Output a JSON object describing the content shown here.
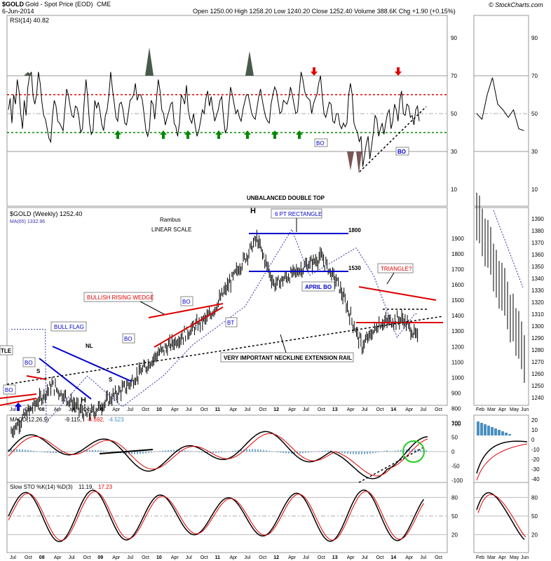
{
  "header": {
    "symbol": "$GOLD",
    "name": "Gold - Spot Price (EOD)",
    "exchange": "CME",
    "date": "6-Jun-2014",
    "ohlc": "Open 1250.00  High 1258.20  Low 1240.20  Close 1252.40  Volume 388.6K  Chg +1.90 (+0.15%)",
    "copyright": "© StockCharts.com"
  },
  "rsi": {
    "label": "RSI(14) 40.82",
    "ticks": [
      90,
      70,
      50,
      30,
      10
    ],
    "levels": {
      "upper": 60,
      "lower": 40
    },
    "values": [
      52,
      58,
      45,
      60,
      55,
      68,
      62,
      50,
      42,
      57,
      49,
      64,
      70,
      72,
      59,
      55,
      60,
      72,
      66,
      56,
      49,
      47,
      42,
      37,
      35,
      49,
      57,
      54,
      46,
      45,
      43,
      41,
      52,
      63,
      60,
      54,
      49,
      48,
      54,
      53,
      48,
      40,
      42,
      56,
      68,
      58,
      45,
      39,
      41,
      57,
      53,
      56,
      51,
      44,
      41,
      49,
      52,
      60,
      72,
      63,
      56,
      48,
      46,
      55,
      56,
      52,
      45,
      44,
      50,
      57,
      58,
      60,
      66,
      57,
      60,
      60,
      57,
      49,
      41,
      38,
      42,
      57,
      55,
      47,
      58,
      68,
      62,
      52,
      50,
      44,
      48,
      51,
      55,
      56,
      45,
      43,
      38,
      45,
      60,
      58,
      55,
      65,
      52,
      47,
      45,
      50,
      43,
      38,
      41,
      46,
      52,
      50,
      58,
      62,
      54,
      59,
      52,
      46,
      49,
      52,
      57,
      59,
      48,
      40,
      42,
      54,
      64,
      60,
      55,
      50,
      52,
      48,
      46,
      52,
      56,
      60,
      60,
      55,
      50,
      48,
      47,
      53,
      59,
      63,
      57,
      52,
      48,
      46,
      45,
      55,
      60,
      64,
      62,
      56,
      50,
      51,
      57,
      56,
      55,
      58,
      64,
      60,
      55,
      50,
      51,
      62,
      72,
      68,
      62,
      59,
      58,
      57,
      50,
      55,
      58,
      60,
      66,
      70,
      59,
      50,
      48,
      52,
      56,
      55,
      46,
      45,
      50,
      50,
      44,
      42,
      45,
      43,
      45,
      60,
      66,
      60,
      45,
      42,
      40,
      35,
      38,
      22,
      28,
      34,
      38,
      26,
      33,
      40,
      49,
      47,
      38,
      42,
      45,
      39,
      45,
      50,
      52,
      42,
      46,
      55,
      52,
      46,
      57,
      62,
      50,
      49,
      55,
      54,
      48,
      49,
      44,
      52,
      54,
      46
    ],
    "bo_label": "BO",
    "side_values": [
      50,
      47,
      60,
      69,
      55,
      52,
      48,
      52,
      42,
      41
    ]
  },
  "price": {
    "title": "$GOLD (Weekly) 1252.40",
    "ma_label": "MA(65) 1332.96",
    "scale_note_1": "Rambus",
    "scale_note_2": "LINEAR SCALE",
    "ticks": [
      1900,
      1800,
      1700,
      1600,
      1500,
      1400,
      1300,
      1200,
      1100,
      1000,
      900,
      800,
      700
    ],
    "side_ticks": [
      1390,
      1380,
      1370,
      1360,
      1350,
      1340,
      1330,
      1320,
      1310,
      1300,
      1290,
      1280,
      1270,
      1260,
      1250,
      1240
    ],
    "x_ticks": [
      "Jul",
      "Oct",
      "08",
      "Apr",
      "Jul",
      "Oct",
      "09",
      "Apr",
      "Jul",
      "Oct",
      "10",
      "Apr",
      "Jul",
      "Oct",
      "11",
      "Apr",
      "Jul",
      "Oct",
      "12",
      "Apr",
      "Jul",
      "Oct",
      "13",
      "Apr",
      "Jul",
      "Oct",
      "14",
      "Apr",
      "Jul",
      "Oct"
    ],
    "side_x_ticks": [
      "Feb",
      "Mar",
      "Apr",
      "May",
      "Jun"
    ]
  },
  "annotations": {
    "udt": "UNBALANCED DOUBLE TOP",
    "h": "H",
    "rect": "6 PT RECTANGLE",
    "r1800": "1800",
    "r1530": "1530",
    "april_bo": "APRIL BO",
    "triangle": "TRIANGLE?",
    "wedge": "BULLISH RISING WEDGE",
    "bo": "BO",
    "bt": "BT",
    "bull_flag": "BULL FLAG",
    "nl": "NL",
    "s": "S",
    "neckline": "VERY IMPORTANT NECKLINE EXTENSION RAIL",
    "tle": "TLE"
  },
  "macd": {
    "label_a": "MACD(12,26,9)",
    "label_b": "-9.115,",
    "label_c": "-4.592,",
    "label_d": "-4.523",
    "ticks": [
      100,
      50,
      0,
      -50,
      -100
    ],
    "side_ticks": [
      20,
      10,
      0,
      -10,
      -20,
      -30,
      -40
    ]
  },
  "sto": {
    "label_a": "Slow STO %K(14) %D(3)",
    "label_b": "11.19,",
    "label_c": "17.23",
    "ticks": [
      80,
      50,
      20
    ],
    "side_ticks": [
      80,
      50,
      20
    ]
  },
  "colors": {
    "red": "#dd0000",
    "green": "#008800",
    "blue": "#0000cc",
    "maBlue": "#3333aa",
    "hist": "#4a8fc0"
  },
  "chart_data": {
    "type": "line",
    "title": "$GOLD (Weekly) 1252.40",
    "ylim": [
      650,
      1950
    ],
    "close_checkpoints_usd": [
      [
        2007.5,
        650
      ],
      [
        2008.2,
        950
      ],
      [
        2008.8,
        750
      ],
      [
        2009.5,
        950
      ],
      [
        2010.0,
        1150
      ],
      [
        2010.9,
        1400
      ],
      [
        2011.7,
        1900
      ],
      [
        2012.0,
        1600
      ],
      [
        2012.8,
        1780
      ],
      [
        2013.1,
        1600
      ],
      [
        2013.5,
        1200
      ],
      [
        2013.8,
        1350
      ],
      [
        2014.2,
        1380
      ],
      [
        2014.45,
        1252
      ]
    ]
  }
}
